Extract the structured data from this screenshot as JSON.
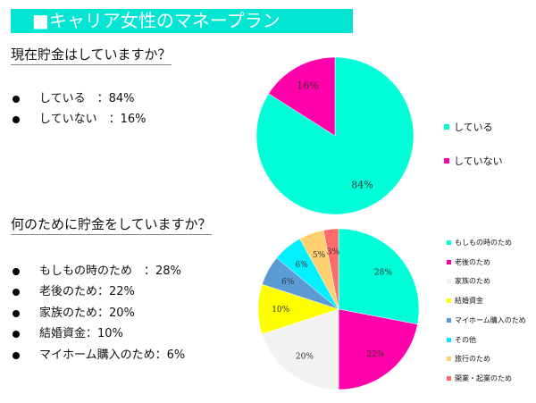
{
  "title": "■キャリア女性のマネープラン",
  "q1": {
    "heading": "現在貯金はしていますか？",
    "items": [
      "している　：84%",
      "していない　：16%"
    ]
  },
  "q2": {
    "heading": "何のために貯金をしていますか？",
    "items": [
      "もしもの時のため　：28%",
      "老後のため：22%",
      "家族のため：20%",
      "結婚資金：10%",
      "マイホーム購入のため：6%"
    ]
  },
  "chart_data": [
    {
      "type": "pie",
      "categories": [
        "している",
        "していない"
      ],
      "values": [
        84,
        16
      ],
      "labels": [
        "84%",
        "16%"
      ],
      "colors": [
        "#00ffd8",
        "#ff00aa"
      ],
      "legend": "right"
    },
    {
      "type": "pie",
      "categories": [
        "もしもの時のため",
        "老後のため",
        "家族のため",
        "結婚資金",
        "マイホーム購入のため",
        "その他",
        "旅行のため",
        "開業・起業のため"
      ],
      "values": [
        28,
        22,
        20,
        10,
        6,
        6,
        5,
        3
      ],
      "labels": [
        "28%",
        "22%",
        "20%",
        "10%",
        "6%",
        "6%",
        "5%",
        "3%"
      ],
      "colors": [
        "#00ffd8",
        "#ff00aa",
        "#f2f2f2",
        "#ffff00",
        "#5b9bd5",
        "#00f0ff",
        "#ffd070",
        "#ff6b6b"
      ],
      "legend": "right"
    }
  ]
}
